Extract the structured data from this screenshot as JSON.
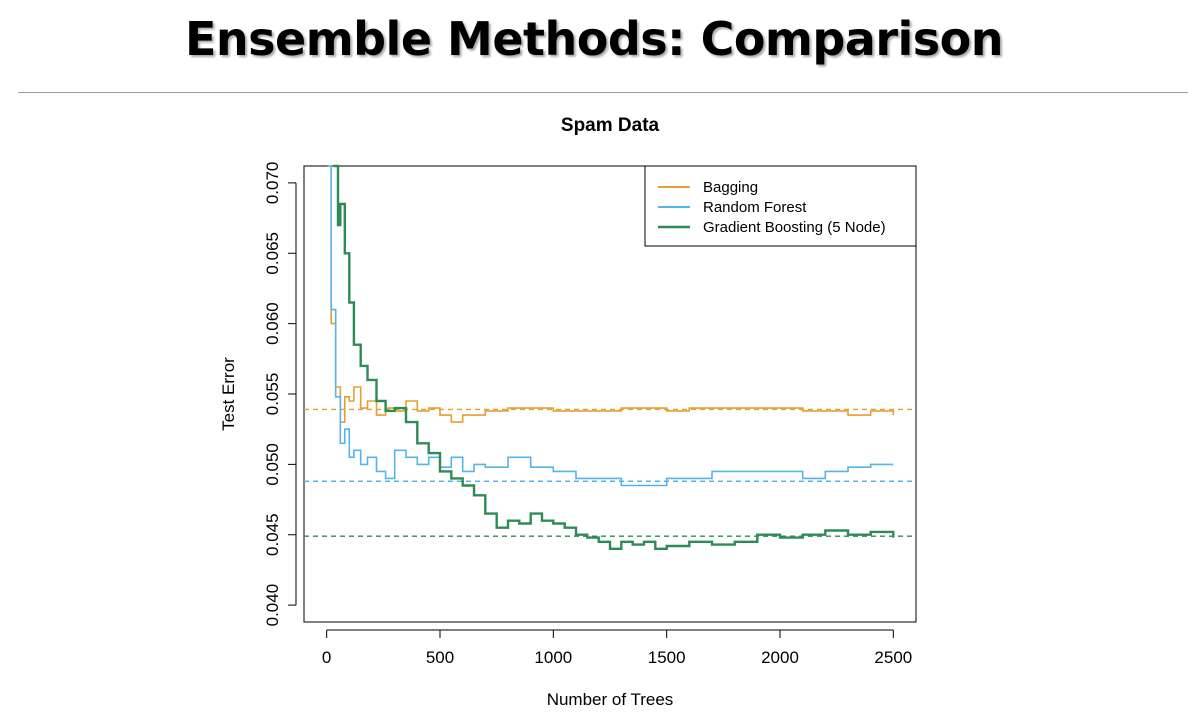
{
  "slide": {
    "title": "Ensemble Methods: Comparison"
  },
  "chart_data": {
    "type": "line",
    "title": "Spam Data",
    "xlabel": "Number of Trees",
    "ylabel": "Test Error",
    "xlim": [
      -100,
      2600
    ],
    "ylim": [
      0.0388,
      0.0712
    ],
    "xticks": [
      0,
      500,
      1000,
      1500,
      2000,
      2500
    ],
    "xtick_labels": [
      "0",
      "500",
      "1000",
      "1500",
      "2000",
      "2500"
    ],
    "yticks": [
      0.04,
      0.045,
      0.05,
      0.055,
      0.06,
      0.065,
      0.07
    ],
    "ytick_labels": [
      "0.040",
      "0.045",
      "0.050",
      "0.055",
      "0.060",
      "0.065",
      "0.070"
    ],
    "legend_position": "top-right",
    "grid": false,
    "series": [
      {
        "name": "Bagging",
        "color": "#E69F32",
        "reference_line": 0.0539,
        "x": [
          5,
          20,
          40,
          60,
          80,
          100,
          120,
          150,
          180,
          220,
          260,
          300,
          350,
          400,
          450,
          500,
          550,
          600,
          700,
          800,
          900,
          1000,
          1100,
          1200,
          1300,
          1400,
          1500,
          1600,
          1700,
          1800,
          1900,
          2000,
          2100,
          2200,
          2300,
          2400,
          2500
        ],
        "values": [
          0.0712,
          0.06,
          0.0555,
          0.053,
          0.0548,
          0.0545,
          0.0555,
          0.054,
          0.0545,
          0.0535,
          0.054,
          0.0538,
          0.0545,
          0.0538,
          0.054,
          0.0535,
          0.053,
          0.0535,
          0.0538,
          0.054,
          0.054,
          0.0538,
          0.0538,
          0.0538,
          0.054,
          0.054,
          0.0538,
          0.054,
          0.054,
          0.054,
          0.054,
          0.054,
          0.0538,
          0.0538,
          0.0535,
          0.0538,
          0.0535
        ]
      },
      {
        "name": "Random Forest",
        "color": "#56B4E9",
        "reference_line": 0.0488,
        "x": [
          5,
          20,
          40,
          60,
          80,
          100,
          120,
          150,
          180,
          220,
          260,
          300,
          350,
          400,
          450,
          500,
          550,
          600,
          650,
          700,
          800,
          900,
          1000,
          1100,
          1200,
          1300,
          1400,
          1500,
          1600,
          1700,
          1800,
          1900,
          2000,
          2100,
          2200,
          2300,
          2400,
          2500
        ],
        "values": [
          0.0712,
          0.061,
          0.0548,
          0.0515,
          0.0525,
          0.0505,
          0.051,
          0.05,
          0.0505,
          0.0495,
          0.049,
          0.051,
          0.0505,
          0.05,
          0.0505,
          0.0498,
          0.0505,
          0.0495,
          0.05,
          0.0498,
          0.0505,
          0.0498,
          0.0495,
          0.049,
          0.049,
          0.0485,
          0.0485,
          0.049,
          0.049,
          0.0495,
          0.0495,
          0.0495,
          0.0495,
          0.049,
          0.0495,
          0.0498,
          0.05,
          0.05
        ]
      },
      {
        "name": "Gradient Boosting (5 Node)",
        "color": "#2E8B57",
        "reference_line": 0.0449,
        "x": [
          30,
          50,
          60,
          80,
          100,
          120,
          150,
          180,
          220,
          260,
          300,
          350,
          400,
          450,
          500,
          550,
          600,
          650,
          700,
          750,
          800,
          850,
          900,
          950,
          1000,
          1050,
          1100,
          1150,
          1200,
          1250,
          1300,
          1350,
          1400,
          1450,
          1500,
          1600,
          1700,
          1800,
          1900,
          2000,
          2100,
          2200,
          2300,
          2400,
          2500
        ],
        "values": [
          0.0712,
          0.067,
          0.0685,
          0.065,
          0.0615,
          0.0585,
          0.057,
          0.056,
          0.0545,
          0.0538,
          0.054,
          0.053,
          0.0515,
          0.0508,
          0.0495,
          0.049,
          0.0485,
          0.0478,
          0.0465,
          0.0455,
          0.046,
          0.0458,
          0.0465,
          0.046,
          0.0458,
          0.0455,
          0.045,
          0.0448,
          0.0445,
          0.044,
          0.0445,
          0.0443,
          0.0445,
          0.044,
          0.0442,
          0.0445,
          0.0443,
          0.0445,
          0.045,
          0.0448,
          0.045,
          0.0453,
          0.045,
          0.0452,
          0.0448
        ]
      }
    ]
  }
}
